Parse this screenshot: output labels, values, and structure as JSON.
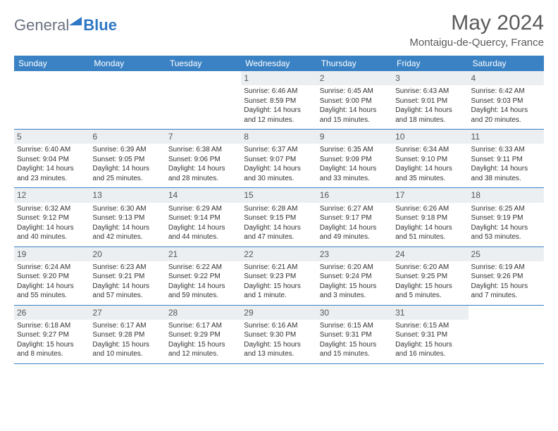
{
  "logo": {
    "text_gray": "General",
    "text_blue": "Blue"
  },
  "title": "May 2024",
  "location": "Montaigu-de-Quercy, France",
  "colors": {
    "header_bg": "#3b82c4",
    "header_text": "#ffffff",
    "daynum_bg": "#eceff2",
    "row_border": "#3b82c4",
    "logo_gray": "#6b7280",
    "logo_blue": "#2f78c4",
    "title_color": "#5a5a5a"
  },
  "day_headers": [
    "Sunday",
    "Monday",
    "Tuesday",
    "Wednesday",
    "Thursday",
    "Friday",
    "Saturday"
  ],
  "weeks": [
    [
      {
        "num": "",
        "sunrise": "",
        "sunset": "",
        "daylight": ""
      },
      {
        "num": "",
        "sunrise": "",
        "sunset": "",
        "daylight": ""
      },
      {
        "num": "",
        "sunrise": "",
        "sunset": "",
        "daylight": ""
      },
      {
        "num": "1",
        "sunrise": "Sunrise: 6:46 AM",
        "sunset": "Sunset: 8:59 PM",
        "daylight": "Daylight: 14 hours and 12 minutes."
      },
      {
        "num": "2",
        "sunrise": "Sunrise: 6:45 AM",
        "sunset": "Sunset: 9:00 PM",
        "daylight": "Daylight: 14 hours and 15 minutes."
      },
      {
        "num": "3",
        "sunrise": "Sunrise: 6:43 AM",
        "sunset": "Sunset: 9:01 PM",
        "daylight": "Daylight: 14 hours and 18 minutes."
      },
      {
        "num": "4",
        "sunrise": "Sunrise: 6:42 AM",
        "sunset": "Sunset: 9:03 PM",
        "daylight": "Daylight: 14 hours and 20 minutes."
      }
    ],
    [
      {
        "num": "5",
        "sunrise": "Sunrise: 6:40 AM",
        "sunset": "Sunset: 9:04 PM",
        "daylight": "Daylight: 14 hours and 23 minutes."
      },
      {
        "num": "6",
        "sunrise": "Sunrise: 6:39 AM",
        "sunset": "Sunset: 9:05 PM",
        "daylight": "Daylight: 14 hours and 25 minutes."
      },
      {
        "num": "7",
        "sunrise": "Sunrise: 6:38 AM",
        "sunset": "Sunset: 9:06 PM",
        "daylight": "Daylight: 14 hours and 28 minutes."
      },
      {
        "num": "8",
        "sunrise": "Sunrise: 6:37 AM",
        "sunset": "Sunset: 9:07 PM",
        "daylight": "Daylight: 14 hours and 30 minutes."
      },
      {
        "num": "9",
        "sunrise": "Sunrise: 6:35 AM",
        "sunset": "Sunset: 9:09 PM",
        "daylight": "Daylight: 14 hours and 33 minutes."
      },
      {
        "num": "10",
        "sunrise": "Sunrise: 6:34 AM",
        "sunset": "Sunset: 9:10 PM",
        "daylight": "Daylight: 14 hours and 35 minutes."
      },
      {
        "num": "11",
        "sunrise": "Sunrise: 6:33 AM",
        "sunset": "Sunset: 9:11 PM",
        "daylight": "Daylight: 14 hours and 38 minutes."
      }
    ],
    [
      {
        "num": "12",
        "sunrise": "Sunrise: 6:32 AM",
        "sunset": "Sunset: 9:12 PM",
        "daylight": "Daylight: 14 hours and 40 minutes."
      },
      {
        "num": "13",
        "sunrise": "Sunrise: 6:30 AM",
        "sunset": "Sunset: 9:13 PM",
        "daylight": "Daylight: 14 hours and 42 minutes."
      },
      {
        "num": "14",
        "sunrise": "Sunrise: 6:29 AM",
        "sunset": "Sunset: 9:14 PM",
        "daylight": "Daylight: 14 hours and 44 minutes."
      },
      {
        "num": "15",
        "sunrise": "Sunrise: 6:28 AM",
        "sunset": "Sunset: 9:15 PM",
        "daylight": "Daylight: 14 hours and 47 minutes."
      },
      {
        "num": "16",
        "sunrise": "Sunrise: 6:27 AM",
        "sunset": "Sunset: 9:17 PM",
        "daylight": "Daylight: 14 hours and 49 minutes."
      },
      {
        "num": "17",
        "sunrise": "Sunrise: 6:26 AM",
        "sunset": "Sunset: 9:18 PM",
        "daylight": "Daylight: 14 hours and 51 minutes."
      },
      {
        "num": "18",
        "sunrise": "Sunrise: 6:25 AM",
        "sunset": "Sunset: 9:19 PM",
        "daylight": "Daylight: 14 hours and 53 minutes."
      }
    ],
    [
      {
        "num": "19",
        "sunrise": "Sunrise: 6:24 AM",
        "sunset": "Sunset: 9:20 PM",
        "daylight": "Daylight: 14 hours and 55 minutes."
      },
      {
        "num": "20",
        "sunrise": "Sunrise: 6:23 AM",
        "sunset": "Sunset: 9:21 PM",
        "daylight": "Daylight: 14 hours and 57 minutes."
      },
      {
        "num": "21",
        "sunrise": "Sunrise: 6:22 AM",
        "sunset": "Sunset: 9:22 PM",
        "daylight": "Daylight: 14 hours and 59 minutes."
      },
      {
        "num": "22",
        "sunrise": "Sunrise: 6:21 AM",
        "sunset": "Sunset: 9:23 PM",
        "daylight": "Daylight: 15 hours and 1 minute."
      },
      {
        "num": "23",
        "sunrise": "Sunrise: 6:20 AM",
        "sunset": "Sunset: 9:24 PM",
        "daylight": "Daylight: 15 hours and 3 minutes."
      },
      {
        "num": "24",
        "sunrise": "Sunrise: 6:20 AM",
        "sunset": "Sunset: 9:25 PM",
        "daylight": "Daylight: 15 hours and 5 minutes."
      },
      {
        "num": "25",
        "sunrise": "Sunrise: 6:19 AM",
        "sunset": "Sunset: 9:26 PM",
        "daylight": "Daylight: 15 hours and 7 minutes."
      }
    ],
    [
      {
        "num": "26",
        "sunrise": "Sunrise: 6:18 AM",
        "sunset": "Sunset: 9:27 PM",
        "daylight": "Daylight: 15 hours and 8 minutes."
      },
      {
        "num": "27",
        "sunrise": "Sunrise: 6:17 AM",
        "sunset": "Sunset: 9:28 PM",
        "daylight": "Daylight: 15 hours and 10 minutes."
      },
      {
        "num": "28",
        "sunrise": "Sunrise: 6:17 AM",
        "sunset": "Sunset: 9:29 PM",
        "daylight": "Daylight: 15 hours and 12 minutes."
      },
      {
        "num": "29",
        "sunrise": "Sunrise: 6:16 AM",
        "sunset": "Sunset: 9:30 PM",
        "daylight": "Daylight: 15 hours and 13 minutes."
      },
      {
        "num": "30",
        "sunrise": "Sunrise: 6:15 AM",
        "sunset": "Sunset: 9:31 PM",
        "daylight": "Daylight: 15 hours and 15 minutes."
      },
      {
        "num": "31",
        "sunrise": "Sunrise: 6:15 AM",
        "sunset": "Sunset: 9:31 PM",
        "daylight": "Daylight: 15 hours and 16 minutes."
      },
      {
        "num": "",
        "sunrise": "",
        "sunset": "",
        "daylight": ""
      }
    ]
  ]
}
